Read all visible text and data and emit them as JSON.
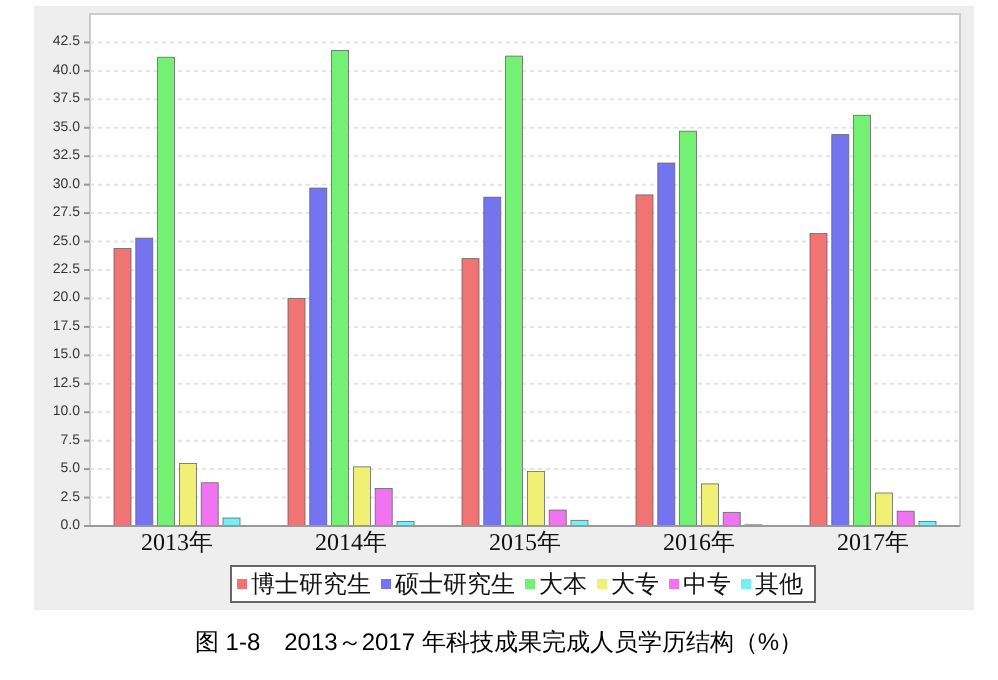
{
  "chart_data": {
    "type": "bar",
    "categories": [
      "2013年",
      "2014年",
      "2015年",
      "2016年",
      "2017年"
    ],
    "series": [
      {
        "name": "博士研究生",
        "color": "#f07474",
        "values": [
          24.4,
          20.0,
          23.5,
          29.1,
          25.7
        ]
      },
      {
        "name": "硕士研究生",
        "color": "#7474f0",
        "values": [
          25.3,
          29.7,
          28.9,
          31.9,
          34.4
        ]
      },
      {
        "name": "大本",
        "color": "#74f074",
        "values": [
          41.2,
          41.8,
          41.3,
          34.7,
          36.1
        ]
      },
      {
        "name": "大专",
        "color": "#f0f074",
        "values": [
          5.5,
          5.2,
          4.8,
          3.7,
          2.9
        ]
      },
      {
        "name": "中专",
        "color": "#f074f0",
        "values": [
          3.8,
          3.3,
          1.4,
          1.2,
          1.3
        ]
      },
      {
        "name": "其他",
        "color": "#74f0f0",
        "values": [
          0.7,
          0.4,
          0.5,
          0.1,
          0.4
        ]
      }
    ],
    "ylim": [
      0,
      45
    ],
    "yticks": [
      {
        "value": 0,
        "label": "0.0"
      },
      {
        "value": 2.5,
        "label": "2.5"
      },
      {
        "value": 5,
        "label": "5.0"
      },
      {
        "value": 7.5,
        "label": "7.5"
      },
      {
        "value": 10,
        "label": "10.0"
      },
      {
        "value": 12.5,
        "label": "12.5"
      },
      {
        "value": 15,
        "label": "15.0"
      },
      {
        "value": 17.5,
        "label": "17.5"
      },
      {
        "value": 20,
        "label": "20.0"
      },
      {
        "value": 22.5,
        "label": "22.5"
      },
      {
        "value": 25,
        "label": "25.0"
      },
      {
        "value": 27.5,
        "label": "27.5"
      },
      {
        "value": 30,
        "label": "30.0"
      },
      {
        "value": 32.5,
        "label": "32.5"
      },
      {
        "value": 35,
        "label": "35.0"
      },
      {
        "value": 37.5,
        "label": "37.5"
      },
      {
        "value": 40,
        "label": "40.0"
      },
      {
        "value": 42.5,
        "label": "42.5"
      }
    ],
    "grid": "y",
    "legend": "bottom",
    "annotations": [
      "图 1-8　2013～2017 年科技成果完成人员学历结构（%）"
    ]
  }
}
